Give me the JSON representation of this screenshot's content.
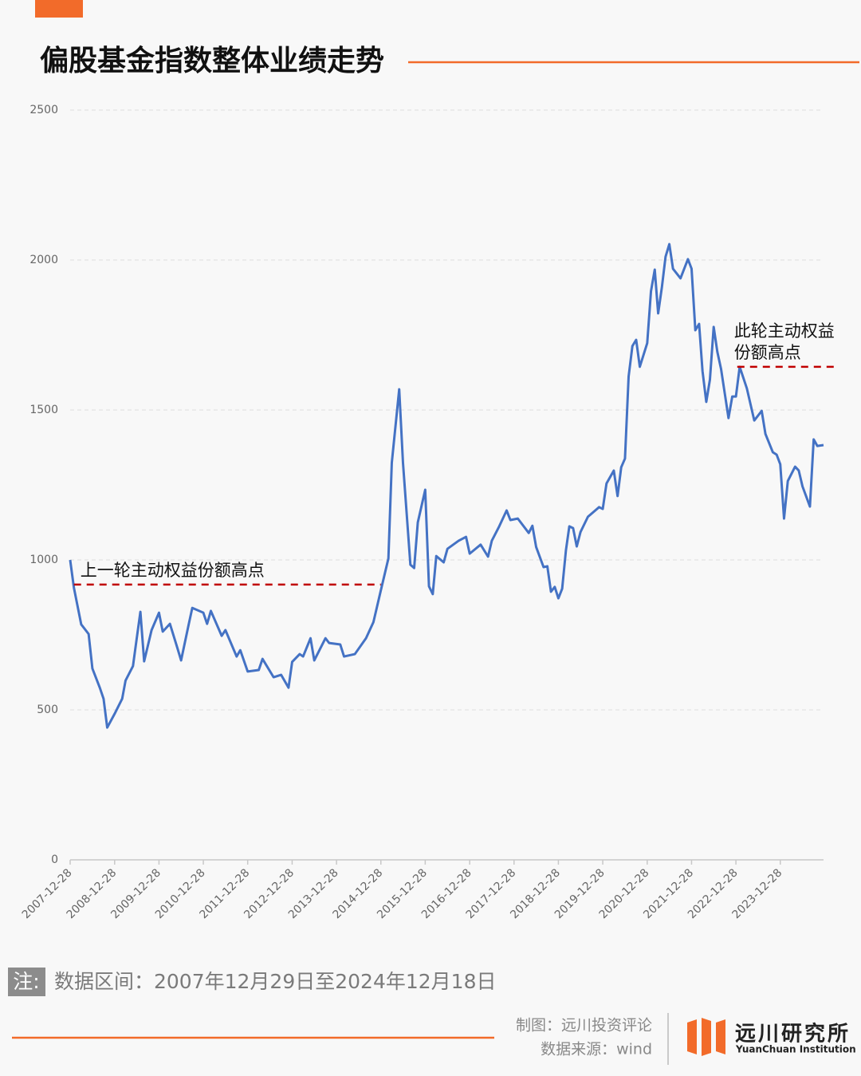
{
  "chart_data": {
    "type": "line",
    "title": "偏股基金指数整体业绩走势",
    "x": [
      "2007-12-28",
      "2008-01-28",
      "2008-03-28",
      "2008-05-28",
      "2008-06-28",
      "2008-08-28",
      "2008-09-28",
      "2008-10-28",
      "2008-12-28",
      "2009-02-28",
      "2009-03-28",
      "2009-05-28",
      "2009-06-28",
      "2009-07-28",
      "2009-08-28",
      "2009-10-28",
      "2009-12-28",
      "2010-01-28",
      "2010-03-28",
      "2010-05-28",
      "2010-06-28",
      "2010-08-28",
      "2010-09-28",
      "2010-12-28",
      "2011-01-28",
      "2011-02-28",
      "2011-05-28",
      "2011-06-28",
      "2011-09-28",
      "2011-10-28",
      "2011-12-28",
      "2012-03-28",
      "2012-04-28",
      "2012-07-28",
      "2012-09-28",
      "2012-11-28",
      "2012-12-28",
      "2013-02-28",
      "2013-03-28",
      "2013-05-28",
      "2013-06-28",
      "2013-09-28",
      "2013-10-28",
      "2014-01-28",
      "2014-02-28",
      "2014-05-28",
      "2014-08-28",
      "2014-10-28",
      "2014-12-28",
      "2015-02-28",
      "2015-03-28",
      "2015-05-28",
      "2015-06-28",
      "2015-08-28",
      "2015-09-28",
      "2015-10-28",
      "2015-12-28",
      "2016-01-28",
      "2016-02-28",
      "2016-03-28",
      "2016-05-28",
      "2016-06-28",
      "2016-09-28",
      "2016-11-28",
      "2016-12-28",
      "2017-03-28",
      "2017-05-28",
      "2017-06-28",
      "2017-08-28",
      "2017-10-28",
      "2017-11-28",
      "2018-01-28",
      "2018-04-28",
      "2018-05-28",
      "2018-06-28",
      "2018-08-28",
      "2018-09-28",
      "2018-10-28",
      "2018-11-28",
      "2018-12-28",
      "2019-01-28",
      "2019-02-28",
      "2019-03-28",
      "2019-04-28",
      "2019-05-28",
      "2019-06-28",
      "2019-08-28",
      "2019-11-28",
      "2019-12-28",
      "2020-01-28",
      "2020-03-28",
      "2020-04-28",
      "2020-05-28",
      "2020-06-28",
      "2020-07-28",
      "2020-08-28",
      "2020-09-28",
      "2020-10-28",
      "2020-12-28",
      "2021-01-28",
      "2021-02-28",
      "2021-03-28",
      "2021-04-28",
      "2021-05-28",
      "2021-06-28",
      "2021-07-28",
      "2021-09-28",
      "2021-11-28",
      "2021-12-28",
      "2022-01-28",
      "2022-02-28",
      "2022-03-28",
      "2022-04-28",
      "2022-05-28",
      "2022-06-28",
      "2022-07-28",
      "2022-08-28",
      "2022-09-28",
      "2022-10-28",
      "2022-11-28",
      "2022-12-28",
      "2023-01-28",
      "2023-03-28",
      "2023-05-28",
      "2023-07-28",
      "2023-08-28",
      "2023-10-28",
      "2023-11-28",
      "2023-12-28",
      "2024-01-28",
      "2024-02-28",
      "2024-04-28",
      "2024-05-28",
      "2024-06-28",
      "2024-08-28",
      "2024-09-28",
      "2024-10-28",
      "2024-12-18"
    ],
    "series": [
      {
        "name": "偏股基金指数",
        "color": "#4472c4",
        "values": [
          1000,
          907,
          785,
          753,
          638,
          574,
          537,
          441,
          487,
          537,
          598,
          646,
          739,
          827,
          662,
          766,
          824,
          761,
          787,
          707,
          665,
          782,
          840,
          824,
          787,
          830,
          747,
          766,
          678,
          699,
          628,
          633,
          670,
          609,
          617,
          574,
          660,
          686,
          678,
          739,
          665,
          739,
          723,
          718,
          678,
          686,
          739,
          793,
          899,
          1005,
          1324,
          1569,
          1324,
          984,
          973,
          1125,
          1234,
          912,
          886,
          1013,
          992,
          1037,
          1064,
          1077,
          1021,
          1051,
          1011,
          1064,
          1112,
          1165,
          1133,
          1138,
          1090,
          1114,
          1043,
          976,
          979,
          894,
          910,
          872,
          904,
          1032,
          1112,
          1106,
          1045,
          1093,
          1144,
          1176,
          1170,
          1255,
          1298,
          1213,
          1309,
          1338,
          1612,
          1713,
          1734,
          1644,
          1723,
          1896,
          1968,
          1822,
          1910,
          2011,
          2053,
          1971,
          1939,
          2003,
          1971,
          1766,
          1787,
          1630,
          1527,
          1601,
          1777,
          1694,
          1636,
          1553,
          1473,
          1545,
          1545,
          1644,
          1572,
          1465,
          1497,
          1420,
          1359,
          1351,
          1319,
          1138,
          1263,
          1311,
          1298,
          1245,
          1178,
          1402,
          1380,
          1383
        ]
      }
    ],
    "xlim": [
      "2007-12-28",
      "2024-12-18"
    ],
    "xticks": [
      "2007-12-28",
      "2008-12-28",
      "2009-12-28",
      "2010-12-28",
      "2011-12-28",
      "2012-12-28",
      "2013-12-28",
      "2014-12-28",
      "2015-12-28",
      "2016-12-28",
      "2017-12-28",
      "2018-12-28",
      "2019-12-28",
      "2020-12-28",
      "2021-12-28",
      "2022-12-28",
      "2023-12-28"
    ],
    "ylim": [
      0,
      2500
    ],
    "yticks": [
      0,
      500,
      1000,
      1500,
      2000,
      2500
    ],
    "grid": true,
    "annotations": [
      {
        "lines": [
          "上一轮主动权益份额高点"
        ],
        "value": 918,
        "x": [
          "2008-01-28",
          "2014-12-28"
        ],
        "color": "#c00000"
      },
      {
        "lines": [
          "此轮主动权益",
          "份额高点"
        ],
        "value": 1644,
        "x": [
          "2023-01-08",
          "2025-03-15"
        ],
        "color": "#c00000"
      }
    ]
  },
  "note": {
    "label": "注:",
    "text": "数据区间：2007年12月29日至2024年12月18日"
  },
  "footer": {
    "credit": "制图：远川投资评论",
    "source": "数据来源：wind",
    "logo": "远川研究所",
    "logo_en": "YuanChuan Institution"
  }
}
